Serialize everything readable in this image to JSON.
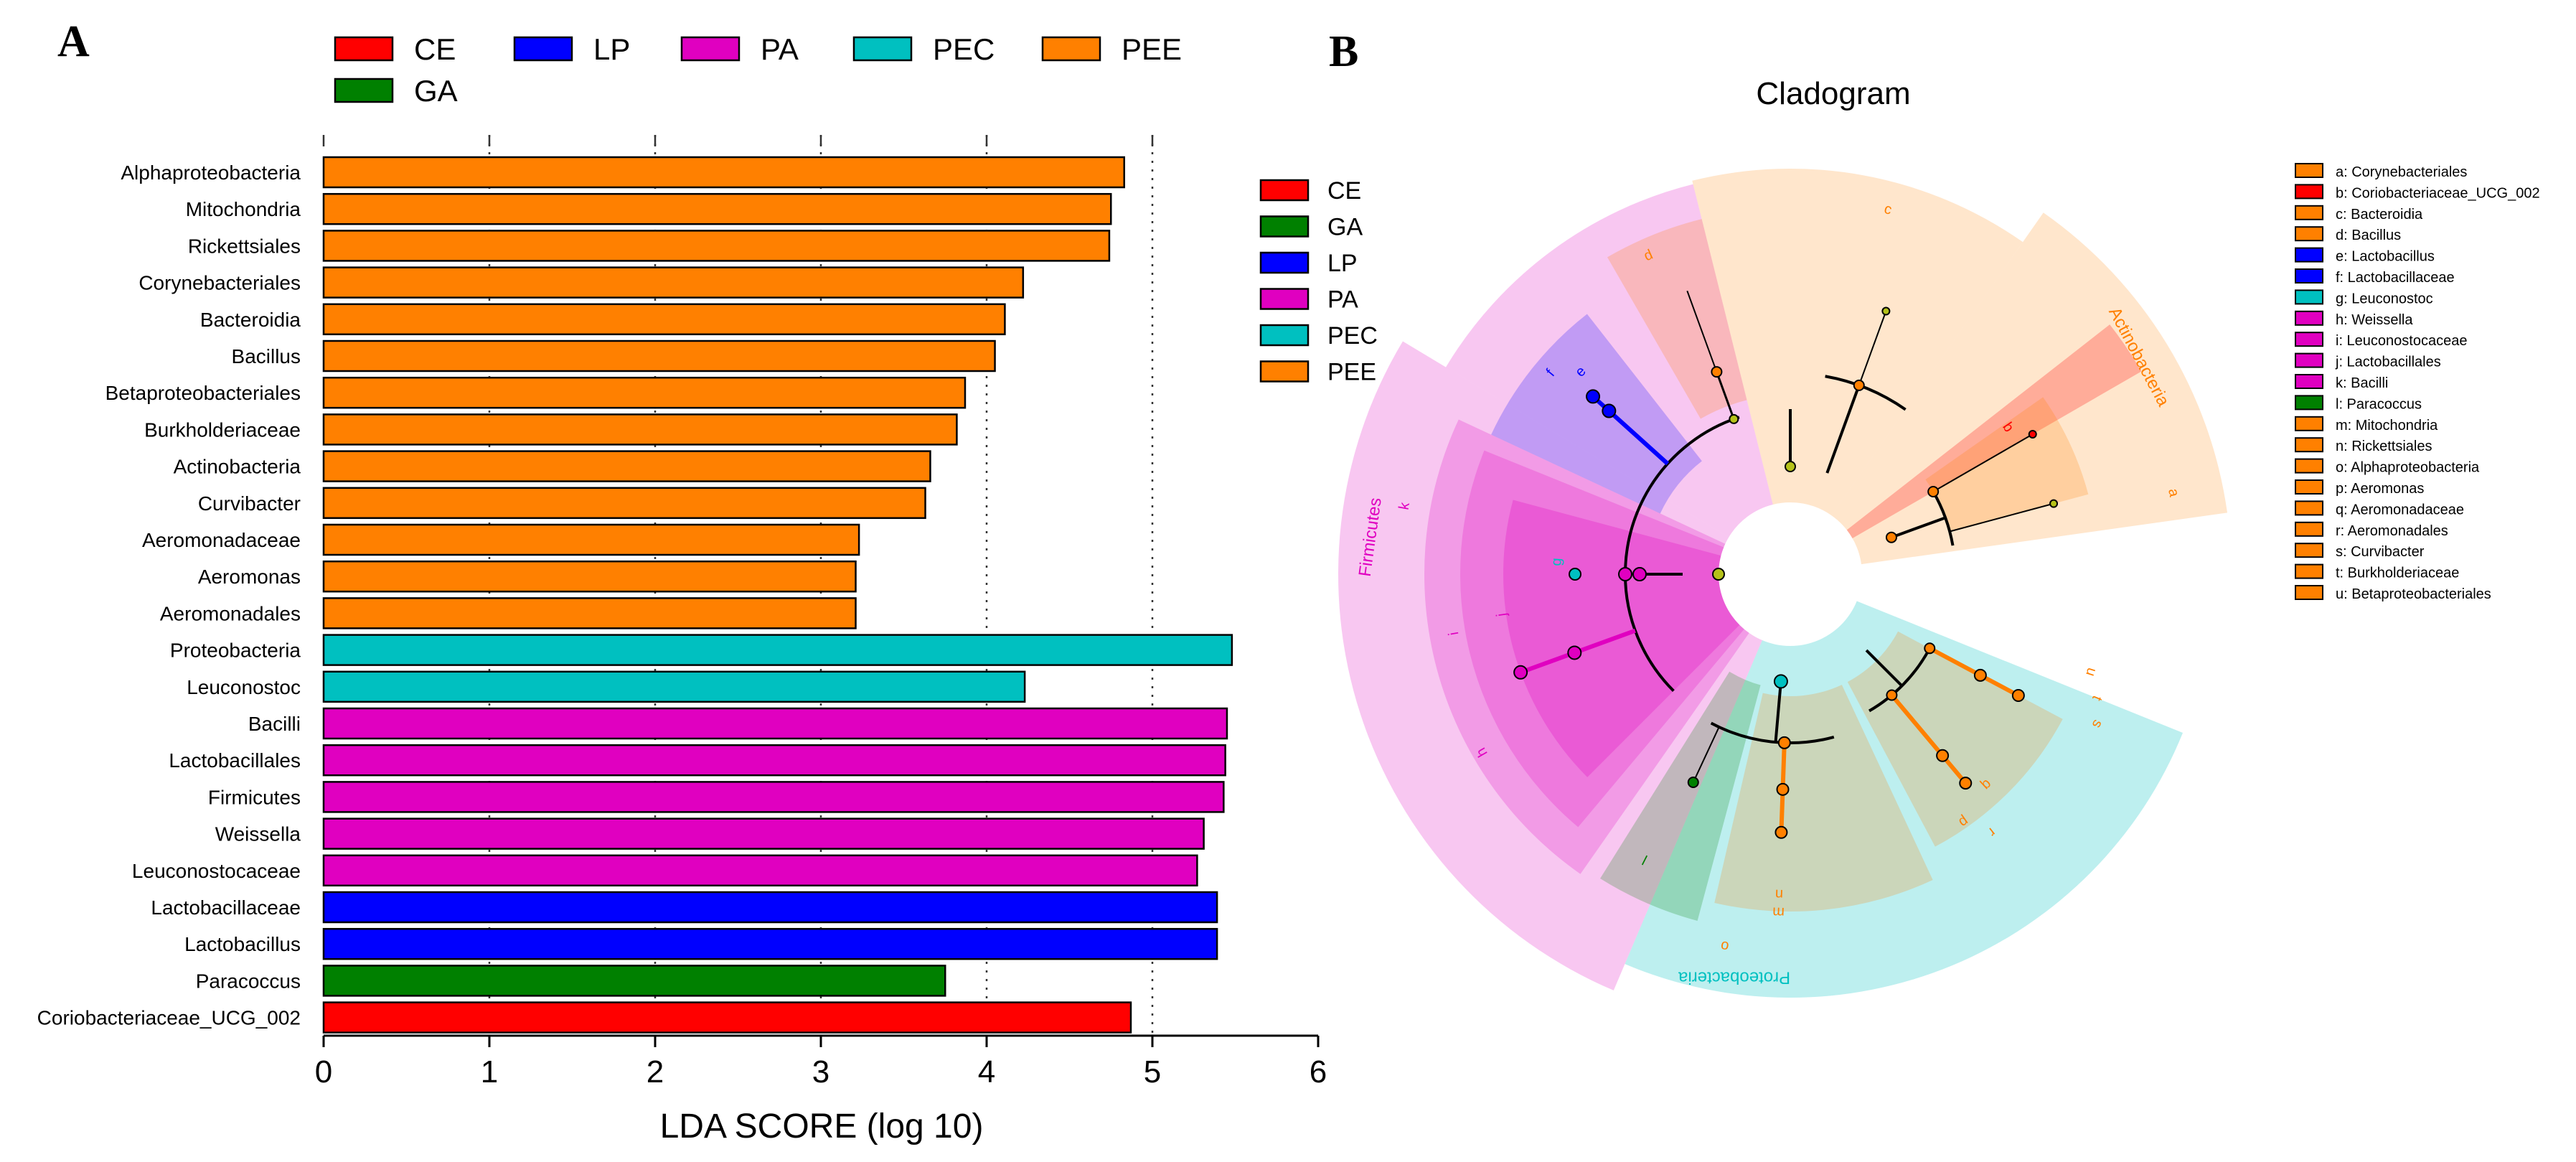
{
  "panels": {
    "a_label": "A",
    "b_label": "B"
  },
  "groups": [
    {
      "name": "CE",
      "color": "#ff0000"
    },
    {
      "name": "GA",
      "color": "#008000"
    },
    {
      "name": "LP",
      "color": "#0000ff"
    },
    {
      "name": "PA",
      "color": "#e000c0"
    },
    {
      "name": "PEC",
      "color": "#00c0c0"
    },
    {
      "name": "PEE",
      "color": "#ff8000"
    }
  ],
  "chart_data": [
    {
      "type": "bar",
      "orientation": "horizontal",
      "xlabel": "LDA SCORE (log 10)",
      "xlim": [
        0,
        6
      ],
      "xticks": [
        "0",
        "1",
        "2",
        "3",
        "4",
        "5",
        "6"
      ],
      "grid": "vertical dotted at 1-5",
      "legend_top_order": [
        "CE",
        "LP",
        "PA",
        "PEC",
        "PEE",
        "GA"
      ],
      "legend_right_order": [
        "CE",
        "GA",
        "LP",
        "PA",
        "PEC",
        "PEE"
      ],
      "bars": [
        {
          "label": "Alphaproteobacteria",
          "value": 4.83,
          "group": "PEE"
        },
        {
          "label": "Mitochondria",
          "value": 4.75,
          "group": "PEE"
        },
        {
          "label": "Rickettsiales",
          "value": 4.74,
          "group": "PEE"
        },
        {
          "label": "Corynebacteriales",
          "value": 4.22,
          "group": "PEE"
        },
        {
          "label": "Bacteroidia",
          "value": 4.11,
          "group": "PEE"
        },
        {
          "label": "Bacillus",
          "value": 4.05,
          "group": "PEE"
        },
        {
          "label": "Betaproteobacteriales",
          "value": 3.87,
          "group": "PEE"
        },
        {
          "label": "Burkholderiaceae",
          "value": 3.82,
          "group": "PEE"
        },
        {
          "label": "Actinobacteria",
          "value": 3.66,
          "group": "PEE"
        },
        {
          "label": "Curvibacter",
          "value": 3.63,
          "group": "PEE"
        },
        {
          "label": "Aeromonadaceae",
          "value": 3.23,
          "group": "PEE"
        },
        {
          "label": "Aeromonas",
          "value": 3.21,
          "group": "PEE"
        },
        {
          "label": "Aeromonadales",
          "value": 3.21,
          "group": "PEE"
        },
        {
          "label": "Proteobacteria",
          "value": 5.48,
          "group": "PEC"
        },
        {
          "label": "Leuconostoc",
          "value": 4.23,
          "group": "PEC"
        },
        {
          "label": "Bacilli",
          "value": 5.45,
          "group": "PA"
        },
        {
          "label": "Lactobacillales",
          "value": 5.44,
          "group": "PA"
        },
        {
          "label": "Firmicutes",
          "value": 5.43,
          "group": "PA"
        },
        {
          "label": "Weissella",
          "value": 5.31,
          "group": "PA"
        },
        {
          "label": "Leuconostocaceae",
          "value": 5.27,
          "group": "PA"
        },
        {
          "label": "Lactobacillaceae",
          "value": 5.39,
          "group": "LP"
        },
        {
          "label": "Lactobacillus",
          "value": 5.39,
          "group": "LP"
        },
        {
          "label": "Paracoccus",
          "value": 3.75,
          "group": "GA"
        },
        {
          "label": "Coriobacteriaceae_UCG_002",
          "value": 4.87,
          "group": "CE"
        }
      ]
    },
    {
      "type": "cladogram",
      "title": "Cladogram",
      "clade_labels": [
        {
          "text": "Firmicutes",
          "color": "#e000c0"
        },
        {
          "text": "Actinobacteria",
          "color": "#ff8000"
        },
        {
          "text": "Proteobacteria",
          "color": "#00c0c0"
        }
      ],
      "node_letters": [
        {
          "text": "a",
          "color": "#ff8000"
        },
        {
          "text": "b",
          "color": "#ff0000"
        },
        {
          "text": "c",
          "color": "#ff8000"
        },
        {
          "text": "d",
          "color": "#ff8000"
        },
        {
          "text": "e",
          "color": "#0000ff"
        },
        {
          "text": "f",
          "color": "#0000ff"
        },
        {
          "text": "g",
          "color": "#00c0c0"
        },
        {
          "text": "h",
          "color": "#e000c0"
        },
        {
          "text": "i",
          "color": "#e000c0"
        },
        {
          "text": "j",
          "color": "#e000c0"
        },
        {
          "text": "k",
          "color": "#e000c0"
        },
        {
          "text": "l",
          "color": "#008000"
        },
        {
          "text": "m",
          "color": "#ff8000"
        },
        {
          "text": "n",
          "color": "#ff8000"
        },
        {
          "text": "o",
          "color": "#ff8000"
        },
        {
          "text": "p",
          "color": "#ff8000"
        },
        {
          "text": "q",
          "color": "#ff8000"
        },
        {
          "text": "r",
          "color": "#ff8000"
        },
        {
          "text": "s",
          "color": "#ff8000"
        },
        {
          "text": "t",
          "color": "#ff8000"
        },
        {
          "text": "u",
          "color": "#ff8000"
        }
      ],
      "legend": [
        {
          "text": "a: Corynebacteriales",
          "color": "#ff8000"
        },
        {
          "text": "b: Coriobacteriaceae_UCG_002",
          "color": "#ff0000"
        },
        {
          "text": "c: Bacteroidia",
          "color": "#ff8000"
        },
        {
          "text": "d: Bacillus",
          "color": "#ff8000"
        },
        {
          "text": "e: Lactobacillus",
          "color": "#0000ff"
        },
        {
          "text": "f: Lactobacillaceae",
          "color": "#0000ff"
        },
        {
          "text": "g: Leuconostoc",
          "color": "#00c0c0"
        },
        {
          "text": "h: Weissella",
          "color": "#e000c0"
        },
        {
          "text": "i: Leuconostocaceae",
          "color": "#e000c0"
        },
        {
          "text": "j: Lactobacillales",
          "color": "#e000c0"
        },
        {
          "text": "k: Bacilli",
          "color": "#e000c0"
        },
        {
          "text": "l: Paracoccus",
          "color": "#008000"
        },
        {
          "text": "m: Mitochondria",
          "color": "#ff8000"
        },
        {
          "text": "n: Rickettsiales",
          "color": "#ff8000"
        },
        {
          "text": "o: Alphaproteobacteria",
          "color": "#ff8000"
        },
        {
          "text": "p: Aeromonas",
          "color": "#ff8000"
        },
        {
          "text": "q: Aeromonadaceae",
          "color": "#ff8000"
        },
        {
          "text": "r: Aeromonadales",
          "color": "#ff8000"
        },
        {
          "text": "s: Curvibacter",
          "color": "#ff8000"
        },
        {
          "text": "t: Burkholderiaceae",
          "color": "#ff8000"
        },
        {
          "text": "u: Betaproteobacteriales",
          "color": "#ff8000"
        }
      ]
    }
  ]
}
